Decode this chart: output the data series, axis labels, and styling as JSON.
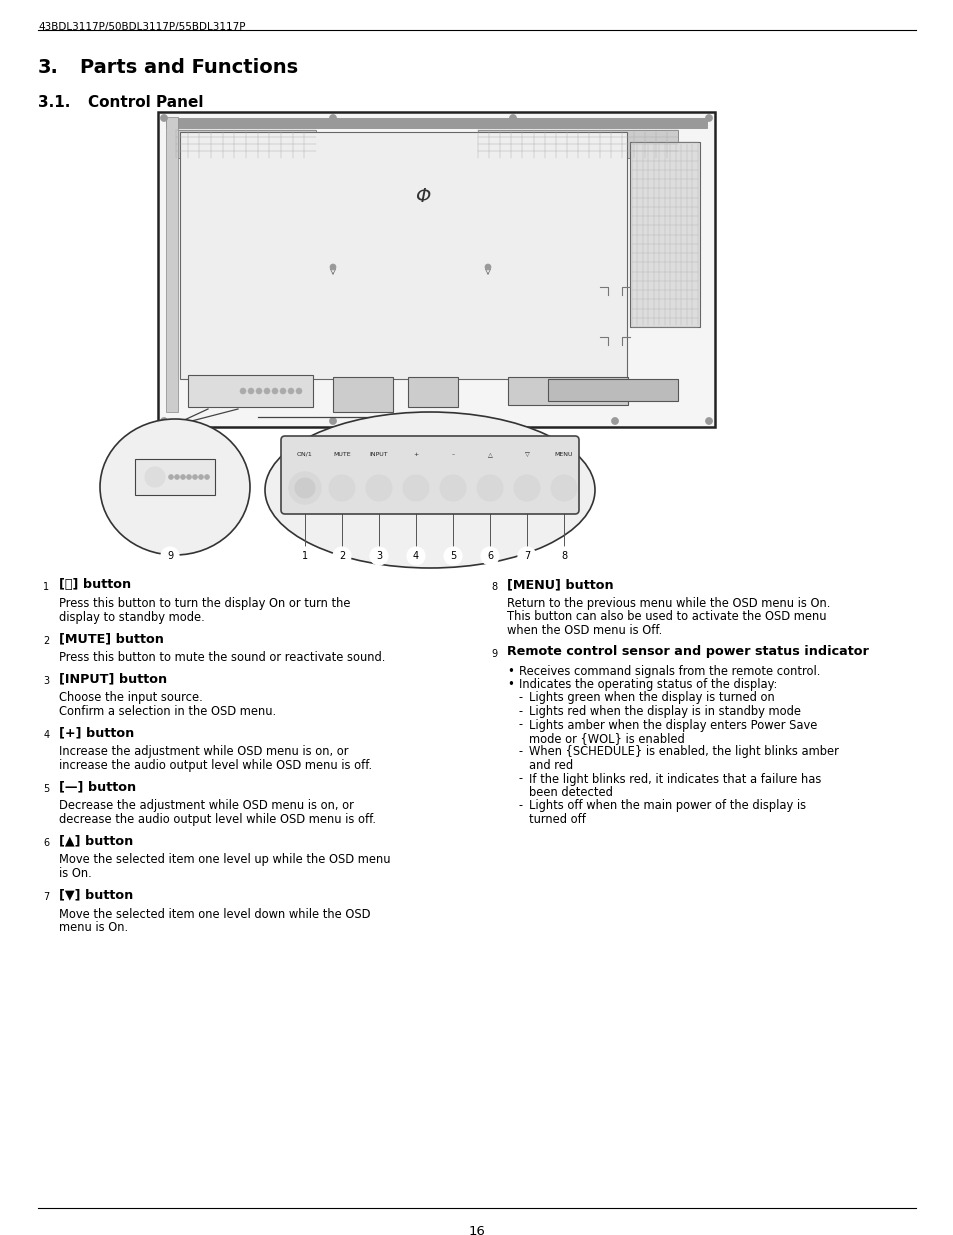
{
  "page_title": "43BDL3117P/50BDL3117P/55BDL3117P",
  "section_title": "3.    Parts and Functions",
  "subsection_title": "3.1.    Control Panel",
  "bg_color": "#ffffff",
  "text_color": "#000000",
  "page_number": "16",
  "left_items": [
    {
      "num": "1",
      "heading": "[⏻] button",
      "body": "Press this button to turn the display On or turn the\ndisplay to standby mode."
    },
    {
      "num": "2",
      "heading": "[MUTE] button",
      "body": "Press this button to mute the sound or reactivate sound."
    },
    {
      "num": "3",
      "heading": "[INPUT] button",
      "body": "Choose the input source.\nConfirm a selection in the OSD menu."
    },
    {
      "num": "4",
      "heading": "[+] button",
      "body": "Increase the adjustment while OSD menu is on, or\nincrease the audio output level while OSD menu is off."
    },
    {
      "num": "5",
      "heading": "[—] button",
      "body": "Decrease the adjustment while OSD menu is on, or\ndecrease the audio output level while OSD menu is off."
    },
    {
      "num": "6",
      "heading": "[▲] button",
      "body": "Move the selected item one level up while the OSD menu\nis On."
    },
    {
      "num": "7",
      "heading": "[▼] button",
      "body": "Move the selected item one level down while the OSD\nmenu is On."
    }
  ],
  "right_items": [
    {
      "num": "8",
      "heading": "[MENU] button",
      "body": "Return to the previous menu while the OSD menu is On.\nThis button can also be used to activate the OSD menu\nwhen the OSD menu is Off."
    },
    {
      "num": "9",
      "heading": "Remote control sensor and power status indicator",
      "body_bullets": [
        "Receives command signals from the remote control.",
        "Indicates the operating status of the display:"
      ],
      "body_dashes": [
        "Lights green when the display is turned on",
        "Lights red when the display is in standby mode",
        "Lights amber when the display enters Power Save\nmode or {WOL} is enabled",
        "When {SCHEDULE} is enabled, the light blinks amber\nand red",
        "If the light blinks red, it indicates that a failure has\nbeen detected",
        "Lights off when the main power of the display is\nturned off"
      ]
    }
  ]
}
